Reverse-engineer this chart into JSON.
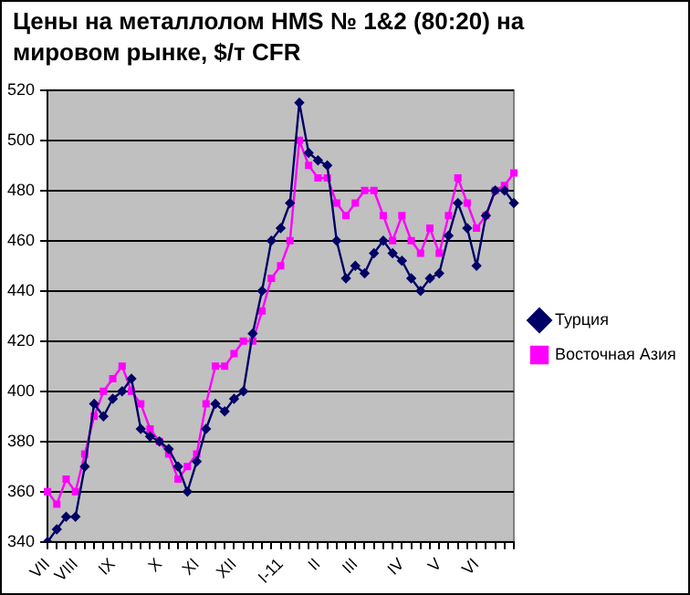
{
  "chart_data": {
    "type": "line",
    "title": "Цены на металлолом HMS № 1&2 (80:20) на мировом рынке, $/т CFR",
    "categories": [
      "VII",
      null,
      null,
      "VIII",
      null,
      null,
      null,
      "IX",
      null,
      null,
      null,
      null,
      "X",
      null,
      null,
      null,
      "XI",
      null,
      null,
      null,
      "XII",
      null,
      null,
      null,
      null,
      "I-11",
      null,
      null,
      null,
      "II",
      null,
      null,
      null,
      "III",
      null,
      null,
      null,
      null,
      "IV",
      null,
      null,
      null,
      "V",
      null,
      null,
      null,
      "VI",
      null,
      null,
      null,
      null
    ],
    "series": [
      {
        "name": "Турция",
        "color": "#000066",
        "marker": "diamond",
        "values": [
          340,
          345,
          350,
          350,
          370,
          395,
          390,
          397,
          400,
          405,
          385,
          382,
          380,
          377,
          370,
          360,
          372,
          385,
          395,
          392,
          397,
          400,
          423,
          440,
          460,
          465,
          475,
          515,
          495,
          492,
          490,
          460,
          445,
          450,
          447,
          455,
          460,
          455,
          452,
          445,
          440,
          445,
          447,
          462,
          475,
          465,
          450,
          470,
          480,
          480,
          475
        ]
      },
      {
        "name": "Восточная Азия",
        "color": "#ff00ff",
        "marker": "square",
        "values": [
          360,
          355,
          365,
          360,
          375,
          390,
          400,
          405,
          410,
          400,
          395,
          385,
          380,
          375,
          365,
          370,
          375,
          395,
          410,
          410,
          415,
          420,
          420,
          432,
          445,
          450,
          460,
          500,
          490,
          485,
          485,
          475,
          470,
          475,
          480,
          480,
          470,
          460,
          470,
          460,
          455,
          465,
          455,
          470,
          485,
          475,
          465,
          470,
          480,
          482,
          487
        ]
      }
    ],
    "ylim": [
      340,
      520
    ],
    "yticks": [
      340,
      360,
      380,
      400,
      420,
      440,
      460,
      480,
      500,
      520
    ],
    "grid": "y",
    "legend": "right"
  }
}
